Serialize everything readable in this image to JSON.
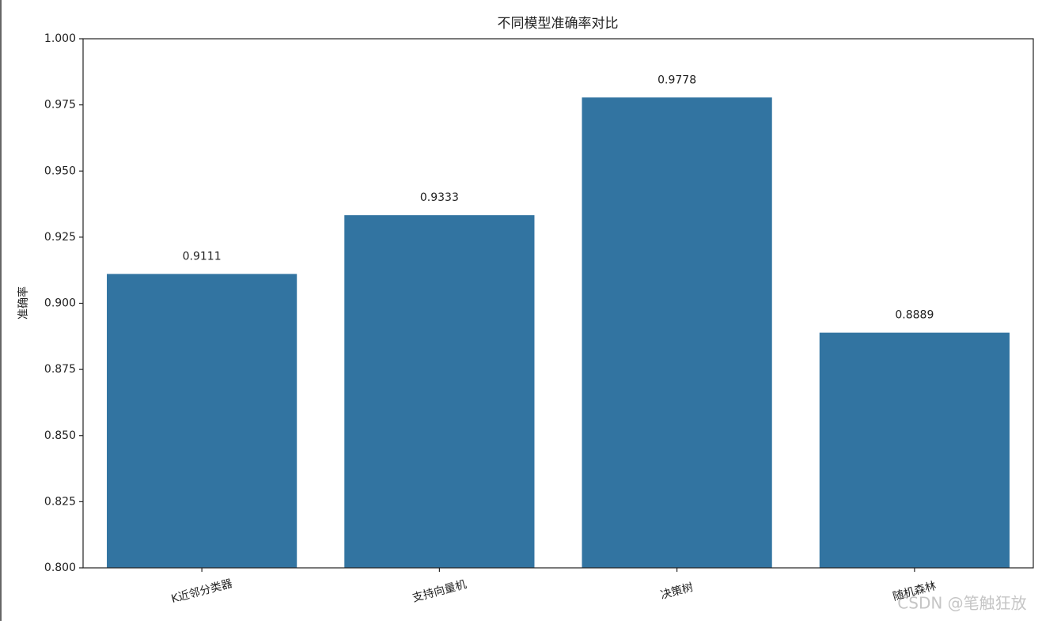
{
  "chart_data": {
    "type": "bar",
    "title": "不同模型准确率对比",
    "y_label": "准确率",
    "categories": [
      "K近邻分类器",
      "支持向量机",
      "决策树",
      "随机森林"
    ],
    "values": [
      0.9111,
      0.9333,
      0.9778,
      0.8889
    ],
    "color": "#3274a1",
    "ylim": [
      0.8,
      1.0
    ],
    "yticks": [
      {
        "value": 0.8,
        "label": "0.800"
      },
      0.825,
      {
        "value": 0.85,
        "label": "0.850"
      },
      0.875,
      {
        "value": 0.9,
        "label": "0.900"
      },
      0.925,
      {
        "value": 0.95,
        "label": "0.950"
      },
      0.975,
      {
        "value": 1.0,
        "label": "1.000"
      }
    ],
    "grid": false,
    "watermark": "CSDN @笔触狂放"
  }
}
